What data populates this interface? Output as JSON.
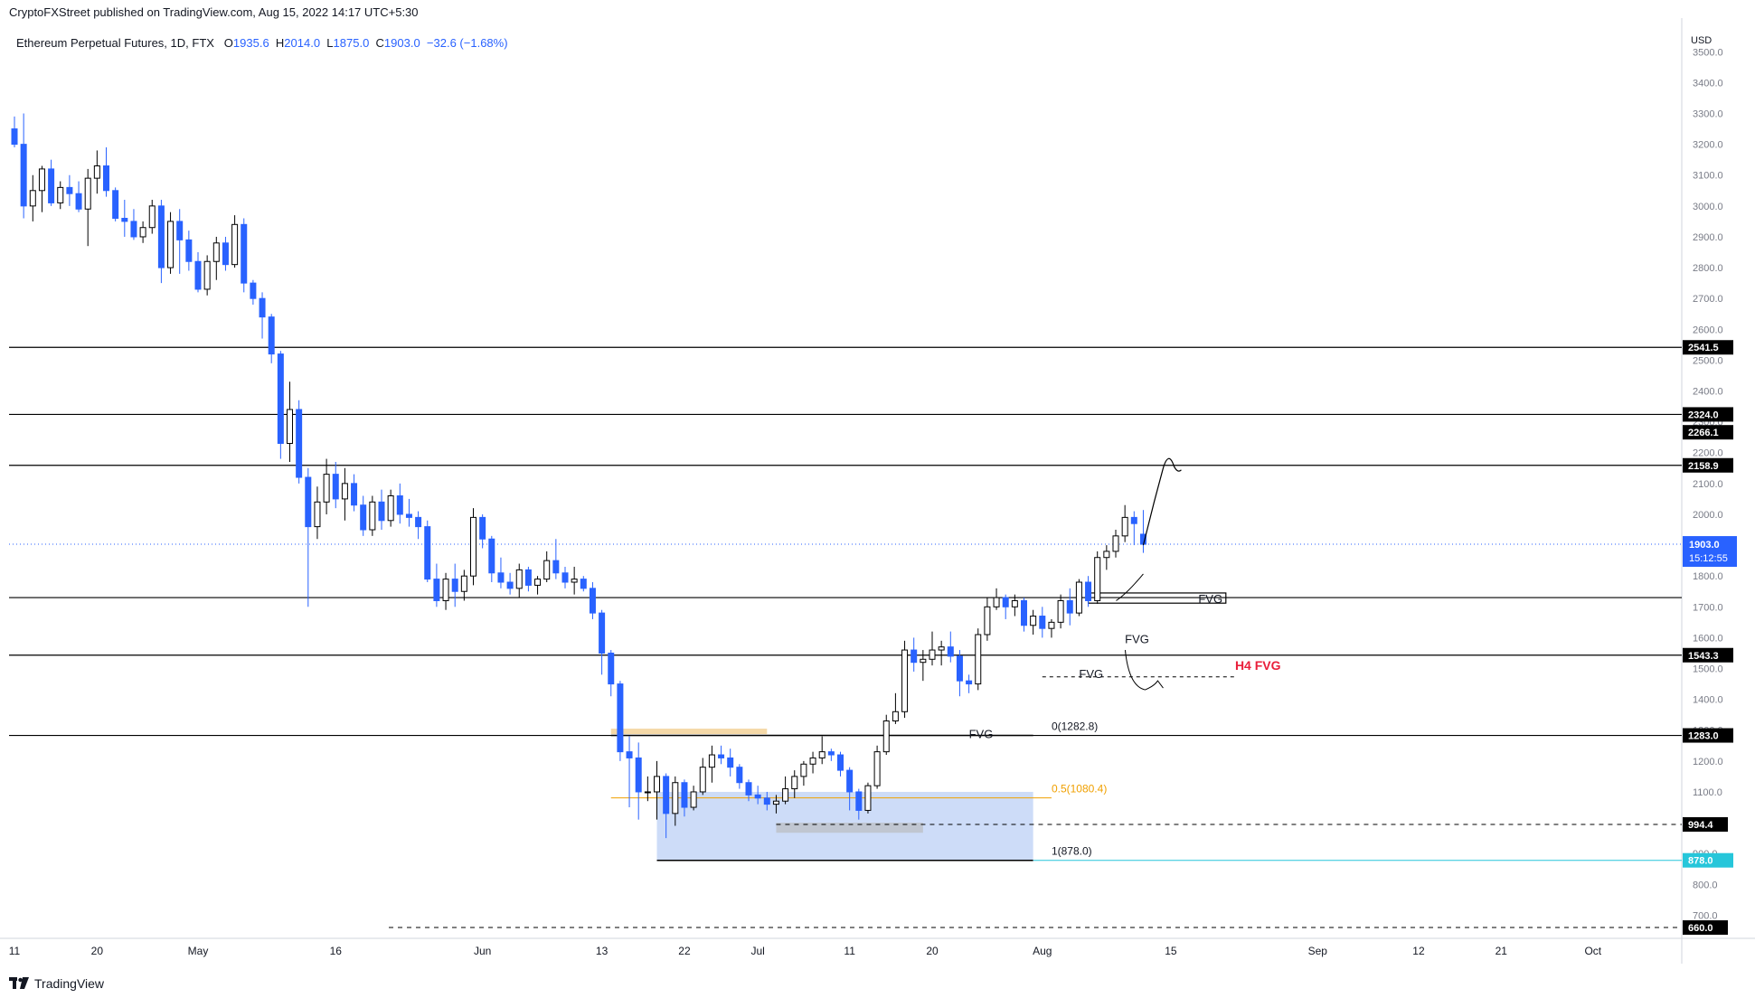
{
  "header": {
    "publisher": "CryptoFXStreet published on TradingView.com, Aug 15, 2022 14:17 UTC+5:30"
  },
  "legend": {
    "symbol": "Ethereum Perpetual Futures, 1D, FTX",
    "o_label": "O",
    "o_value": "1935.6",
    "h_label": "H",
    "h_value": "2014.0",
    "l_label": "L",
    "l_value": "1875.0",
    "c_label": "C",
    "c_value": "1903.0",
    "change": "−32.6 (−1.68%)"
  },
  "footer": {
    "brand": "TradingView"
  },
  "chart_data": {
    "type": "candlestick",
    "currency": "USD",
    "ylim": [
      625,
      3580
    ],
    "y_ticks": [
      700,
      800,
      900,
      1000,
      1100,
      1200,
      1300,
      1400,
      1500,
      1600,
      1700,
      1800,
      1900,
      2000,
      2100,
      2200,
      2300,
      2400,
      2500,
      2600,
      2700,
      2800,
      2900,
      3000,
      3100,
      3200,
      3300,
      3400,
      3500
    ],
    "x_ticks": [
      "11",
      "20",
      "May",
      "16",
      "Jun",
      "13",
      "22",
      "Jul",
      "11",
      "20",
      "Aug",
      "15",
      "Sep",
      "12",
      "21",
      "Oct"
    ],
    "x_tick_days": [
      0,
      9,
      20,
      35,
      51,
      64,
      73,
      81,
      91,
      100,
      112,
      126,
      142,
      153,
      162,
      172
    ],
    "candles_start": "Apr 11",
    "colors": {
      "up": "#000000",
      "down": "#2962ff",
      "body_up": "#ffffff",
      "body_down": "#2962ff",
      "last_price": "#2962ff",
      "fib": "#f0a000",
      "level": "#000000",
      "h4fvg": "#e91e3a",
      "ob_box": "#bcd0f5",
      "fib_1_label": "#26c6da"
    },
    "candles": [
      [
        3250,
        3290,
        3190,
        3200
      ],
      [
        3200,
        3300,
        2960,
        3000
      ],
      [
        3000,
        3100,
        2950,
        3050
      ],
      [
        3050,
        3130,
        2980,
        3120
      ],
      [
        3120,
        3150,
        3000,
        3010
      ],
      [
        3010,
        3080,
        2990,
        3060
      ],
      [
        3060,
        3100,
        3000,
        3040
      ],
      [
        3040,
        3080,
        2980,
        2990
      ],
      [
        2990,
        3120,
        2870,
        3090
      ],
      [
        3090,
        3180,
        3040,
        3130
      ],
      [
        3130,
        3190,
        3030,
        3050
      ],
      [
        3050,
        3060,
        2950,
        2960
      ],
      [
        2960,
        3020,
        2900,
        2950
      ],
      [
        2950,
        2990,
        2890,
        2900
      ],
      [
        2900,
        2950,
        2880,
        2930
      ],
      [
        2930,
        3020,
        2910,
        3000
      ],
      [
        3000,
        3020,
        2750,
        2800
      ],
      [
        2800,
        2980,
        2780,
        2950
      ],
      [
        2950,
        2990,
        2780,
        2890
      ],
      [
        2890,
        2920,
        2790,
        2820
      ],
      [
        2820,
        2850,
        2720,
        2730
      ],
      [
        2730,
        2840,
        2710,
        2820
      ],
      [
        2820,
        2900,
        2760,
        2880
      ],
      [
        2880,
        2900,
        2790,
        2810
      ],
      [
        2810,
        2970,
        2800,
        2940
      ],
      [
        2940,
        2960,
        2720,
        2750
      ],
      [
        2750,
        2760,
        2680,
        2700
      ],
      [
        2700,
        2720,
        2570,
        2640
      ],
      [
        2640,
        2650,
        2490,
        2520
      ],
      [
        2520,
        2530,
        2180,
        2230
      ],
      [
        2230,
        2430,
        2170,
        2340
      ],
      [
        2340,
        2370,
        2100,
        2120
      ],
      [
        2120,
        2150,
        1700,
        1960
      ],
      [
        1960,
        2090,
        1920,
        2040
      ],
      [
        2040,
        2180,
        2000,
        2130
      ],
      [
        2130,
        2170,
        2020,
        2050
      ],
      [
        2050,
        2150,
        1980,
        2100
      ],
      [
        2100,
        2130,
        2010,
        2030
      ],
      [
        2030,
        2060,
        1930,
        1950
      ],
      [
        1950,
        2060,
        1930,
        2040
      ],
      [
        2040,
        2080,
        1950,
        1980
      ],
      [
        1980,
        2080,
        1960,
        2060
      ],
      [
        2060,
        2100,
        1970,
        2000
      ],
      [
        2000,
        2050,
        1960,
        1990
      ],
      [
        1990,
        2010,
        1920,
        1960
      ],
      [
        1960,
        1980,
        1780,
        1790
      ],
      [
        1790,
        1840,
        1700,
        1720
      ],
      [
        1720,
        1810,
        1690,
        1790
      ],
      [
        1790,
        1840,
        1700,
        1750
      ],
      [
        1750,
        1820,
        1720,
        1800
      ],
      [
        1800,
        2020,
        1770,
        1990
      ],
      [
        1990,
        2000,
        1890,
        1920
      ],
      [
        1920,
        1930,
        1780,
        1810
      ],
      [
        1810,
        1860,
        1760,
        1780
      ],
      [
        1780,
        1810,
        1740,
        1760
      ],
      [
        1760,
        1840,
        1730,
        1820
      ],
      [
        1820,
        1830,
        1750,
        1770
      ],
      [
        1770,
        1800,
        1740,
        1790
      ],
      [
        1790,
        1880,
        1780,
        1850
      ],
      [
        1850,
        1920,
        1790,
        1810
      ],
      [
        1810,
        1830,
        1760,
        1780
      ],
      [
        1780,
        1830,
        1740,
        1790
      ],
      [
        1790,
        1800,
        1750,
        1760
      ],
      [
        1760,
        1780,
        1660,
        1680
      ],
      [
        1680,
        1690,
        1480,
        1550
      ],
      [
        1550,
        1560,
        1410,
        1450
      ],
      [
        1450,
        1460,
        1200,
        1230
      ],
      [
        1230,
        1280,
        1050,
        1210
      ],
      [
        1210,
        1260,
        1010,
        1100
      ],
      [
        1100,
        1150,
        1070,
        1100
      ],
      [
        1100,
        1200,
        1010,
        1150
      ],
      [
        1150,
        1160,
        950,
        1030
      ],
      [
        1030,
        1150,
        990,
        1130
      ],
      [
        1130,
        1140,
        1020,
        1050
      ],
      [
        1050,
        1120,
        1040,
        1100
      ],
      [
        1100,
        1210,
        1090,
        1180
      ],
      [
        1180,
        1250,
        1130,
        1220
      ],
      [
        1220,
        1250,
        1190,
        1210
      ],
      [
        1210,
        1240,
        1150,
        1180
      ],
      [
        1180,
        1190,
        1110,
        1130
      ],
      [
        1130,
        1140,
        1070,
        1090
      ],
      [
        1090,
        1120,
        1060,
        1080
      ],
      [
        1080,
        1100,
        1040,
        1060
      ],
      [
        1060,
        1090,
        1030,
        1070
      ],
      [
        1070,
        1150,
        1060,
        1110
      ],
      [
        1110,
        1170,
        1080,
        1150
      ],
      [
        1150,
        1200,
        1120,
        1190
      ],
      [
        1190,
        1230,
        1160,
        1210
      ],
      [
        1210,
        1280,
        1190,
        1230
      ],
      [
        1230,
        1240,
        1200,
        1220
      ],
      [
        1220,
        1230,
        1150,
        1170
      ],
      [
        1170,
        1180,
        1040,
        1100
      ],
      [
        1100,
        1110,
        1010,
        1040
      ],
      [
        1040,
        1130,
        1030,
        1120
      ],
      [
        1120,
        1250,
        1110,
        1230
      ],
      [
        1230,
        1350,
        1220,
        1330
      ],
      [
        1330,
        1420,
        1320,
        1360
      ],
      [
        1360,
        1590,
        1340,
        1560
      ],
      [
        1560,
        1600,
        1490,
        1520
      ],
      [
        1520,
        1560,
        1460,
        1530
      ],
      [
        1530,
        1620,
        1510,
        1560
      ],
      [
        1560,
        1590,
        1510,
        1570
      ],
      [
        1570,
        1620,
        1520,
        1540
      ],
      [
        1540,
        1560,
        1410,
        1460
      ],
      [
        1460,
        1480,
        1420,
        1450
      ],
      [
        1450,
        1630,
        1430,
        1610
      ],
      [
        1610,
        1730,
        1590,
        1700
      ],
      [
        1700,
        1760,
        1690,
        1730
      ],
      [
        1730,
        1740,
        1660,
        1700
      ],
      [
        1700,
        1740,
        1670,
        1720
      ],
      [
        1720,
        1730,
        1620,
        1640
      ],
      [
        1640,
        1690,
        1610,
        1670
      ],
      [
        1670,
        1700,
        1600,
        1630
      ],
      [
        1630,
        1660,
        1600,
        1650
      ],
      [
        1650,
        1740,
        1630,
        1720
      ],
      [
        1720,
        1760,
        1640,
        1680
      ],
      [
        1680,
        1790,
        1670,
        1780
      ],
      [
        1780,
        1800,
        1700,
        1720
      ],
      [
        1720,
        1880,
        1710,
        1860
      ],
      [
        1860,
        1900,
        1820,
        1880
      ],
      [
        1880,
        1950,
        1860,
        1930
      ],
      [
        1930,
        2030,
        1910,
        1990
      ],
      [
        1990,
        2010,
        1900,
        1970
      ],
      [
        1935.6,
        2014.0,
        1875.0,
        1903.0
      ]
    ],
    "horizontal_levels": [
      {
        "label": "2541.5",
        "value": 2541.5
      },
      {
        "label": "2324.0",
        "value": 2324.0
      },
      {
        "label": "2158.9",
        "value": 2158.9
      },
      {
        "label": "",
        "value": 1730.0
      },
      {
        "label": "1543.3",
        "value": 1543.3
      },
      {
        "label": "1283.0",
        "value": 1283.0
      }
    ],
    "dashed_levels": [
      {
        "label": "994.4",
        "value": 994.4
      },
      {
        "label": "660.0",
        "value": 660.0
      }
    ],
    "price_labels": [
      {
        "label": "2266.1",
        "value": 2266.1
      },
      {
        "label": "878.0",
        "value": 878.0
      }
    ],
    "last_price": {
      "label": "1903.0",
      "value": 1903.0,
      "countdown": "15:12:55"
    },
    "fib_labels": [
      {
        "label": "0(1282.8)",
        "value": 1282.8
      },
      {
        "label": "0.5(1080.4)",
        "value": 1080.4
      },
      {
        "label": "1(878.0)",
        "value": 878.0
      }
    ],
    "annotations": [
      {
        "text": "FVG",
        "value": 1582,
        "day": 121
      },
      {
        "text": "FVG",
        "value": 1470,
        "day": 116
      },
      {
        "text": "FVG",
        "value": 1275,
        "day": 104
      },
      {
        "text": "FVG",
        "value": 1712,
        "day": 129
      },
      {
        "text": "H4 FVG",
        "value": 1495,
        "day": 133
      }
    ]
  }
}
